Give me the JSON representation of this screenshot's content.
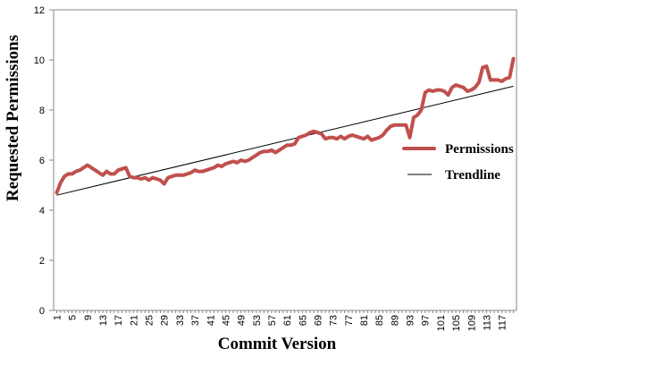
{
  "chart_data": {
    "type": "line",
    "xlabel": "Commit Version",
    "ylabel": "Requested Permissions",
    "ylim": [
      0,
      12
    ],
    "yticks": [
      0,
      2,
      4,
      6,
      8,
      10,
      12
    ],
    "xlim": [
      1,
      120
    ],
    "xticks": [
      "1",
      "5",
      "9",
      "13",
      "17",
      "21",
      "25",
      "29",
      "33",
      "37",
      "41",
      "45",
      "49",
      "53",
      "57",
      "61",
      "65",
      "69",
      "73",
      "77",
      "81",
      "85",
      "89",
      "93",
      "97",
      "101",
      "105",
      "109",
      "113",
      "117"
    ],
    "grid": false,
    "legend_position": "right",
    "series": [
      {
        "name": "Permissions",
        "color": "#c0504d",
        "style": "line",
        "values": [
          4.7,
          5.1,
          5.35,
          5.45,
          5.45,
          5.55,
          5.6,
          5.7,
          5.8,
          5.7,
          5.6,
          5.5,
          5.4,
          5.55,
          5.45,
          5.45,
          5.6,
          5.65,
          5.7,
          5.35,
          5.3,
          5.3,
          5.25,
          5.3,
          5.2,
          5.3,
          5.25,
          5.2,
          5.05,
          5.3,
          5.35,
          5.4,
          5.4,
          5.4,
          5.45,
          5.5,
          5.6,
          5.55,
          5.55,
          5.6,
          5.65,
          5.7,
          5.8,
          5.75,
          5.85,
          5.9,
          5.95,
          5.9,
          6.0,
          5.95,
          6.0,
          6.1,
          6.2,
          6.3,
          6.35,
          6.35,
          6.4,
          6.3,
          6.4,
          6.5,
          6.6,
          6.6,
          6.65,
          6.9,
          6.95,
          7.0,
          7.1,
          7.15,
          7.1,
          7.05,
          6.85,
          6.9,
          6.9,
          6.85,
          6.95,
          6.85,
          6.95,
          7.0,
          6.95,
          6.9,
          6.85,
          6.95,
          6.8,
          6.85,
          6.9,
          7.0,
          7.2,
          7.35,
          7.4,
          7.4,
          7.4,
          7.4,
          6.9,
          7.7,
          7.8,
          8.0,
          8.7,
          8.8,
          8.75,
          8.8,
          8.8,
          8.75,
          8.6,
          8.9,
          9.0,
          8.95,
          8.9,
          8.75,
          8.8,
          8.9,
          9.1,
          9.7,
          9.75,
          9.2,
          9.2,
          9.2,
          9.15,
          9.25,
          9.3,
          10.05
        ]
      },
      {
        "name": "Trendline",
        "color": "#000000",
        "style": "trend",
        "values": [
          4.6,
          8.95
        ]
      }
    ]
  }
}
